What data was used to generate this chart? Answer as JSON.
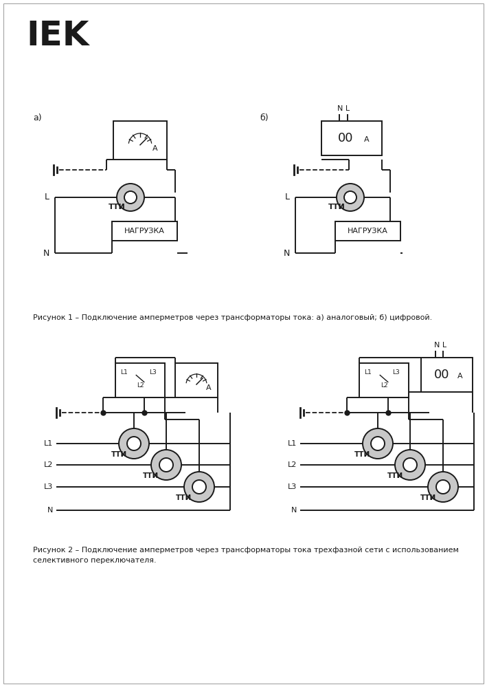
{
  "bg_color": "#ffffff",
  "line_color": "#1a1a1a",
  "tti_fill": "#c8c8c8",
  "fig1_caption": "Рисунок 1 – Подключение амперметров через трансформаторы тока: а) аналоговый; б) цифровой.",
  "fig2_caption_line1": "Рисунок 2 – Подключение амперметров через трансформаторы тока трехфазной сети с использованием",
  "fig2_caption_line2": "селективного переключателя."
}
